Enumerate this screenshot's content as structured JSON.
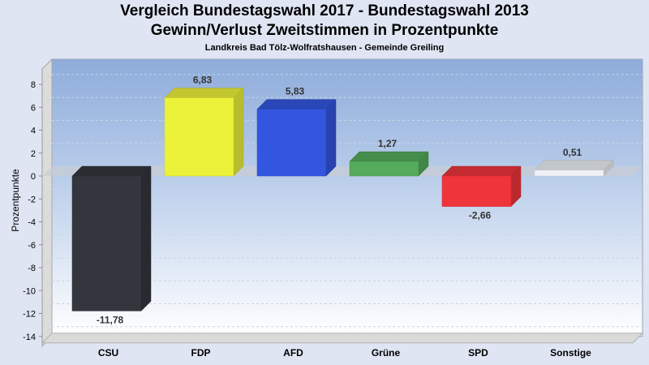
{
  "chart_data": {
    "type": "bar",
    "title": "Vergleich Bundestagswahl 2017 - Bundestagswahl 2013",
    "subtitle": "Gewinn/Verlust Zweitstimmen in Prozentpunkte",
    "subsubtitle": "Landkreis Bad Tölz-Wolfratshausen - Gemeinde Greiling",
    "xlabel": "",
    "ylabel": "Prozentpunkte",
    "ylim": [
      -14,
      9.8
    ],
    "yticks": [
      8,
      6,
      4,
      2,
      0,
      -2,
      -4,
      -6,
      -8,
      -10,
      -12,
      -14
    ],
    "grid": true,
    "categories": [
      "CSU",
      "FDP",
      "AFD",
      "Grüne",
      "SPD",
      "Sonstige"
    ],
    "values": [
      -11.78,
      6.83,
      5.83,
      1.27,
      -2.66,
      0.51
    ],
    "labels": [
      "-11,78",
      "6,83",
      "5,83",
      "1,27",
      "-2,66",
      "0,51"
    ],
    "colors": [
      "#33363c",
      "#ecf23a",
      "#3356e0",
      "#55ab5c",
      "#ef353b",
      "#eef2f6"
    ]
  }
}
